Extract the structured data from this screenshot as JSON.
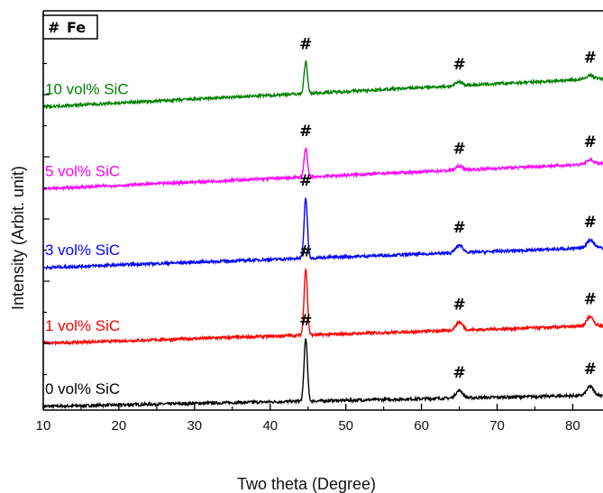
{
  "chart_data": {
    "type": "line",
    "title": "",
    "xlabel": "Two theta (Degree)",
    "ylabel": "Intensity (Arbit. unit)",
    "xlim": [
      10,
      84
    ],
    "xticks": [
      10,
      20,
      30,
      40,
      50,
      60,
      70,
      80
    ],
    "y_tick_labels": "none",
    "grid": false,
    "legend": {
      "symbol": "#",
      "phase": "Fe",
      "placement": "top-left"
    },
    "peak_marker": "#",
    "peaks": [
      44.7,
      65.0,
      82.3
    ],
    "series": [
      {
        "name": "0 vol% SiC",
        "color": "#000000",
        "baseline_start": 0.0,
        "baseline_end": 0.18,
        "peak_heights": [
          1.0,
          0.12,
          0.14
        ]
      },
      {
        "name": "1 vol% SiC",
        "color": "#ff0000",
        "baseline_start": 1.0,
        "baseline_end": 1.28,
        "peak_heights": [
          1.05,
          0.13,
          0.15
        ]
      },
      {
        "name": "3 vol% SiC",
        "color": "#0000ff",
        "baseline_start": 2.2,
        "baseline_end": 2.52,
        "peak_heights": [
          0.95,
          0.12,
          0.13
        ]
      },
      {
        "name": "5 vol% SiC",
        "color": "#ff00ff",
        "baseline_start": 3.45,
        "baseline_end": 3.85,
        "peak_heights": [
          0.45,
          0.06,
          0.07
        ]
      },
      {
        "name": "10 vol% SiC",
        "color": "#008000",
        "baseline_start": 4.75,
        "baseline_end": 5.2,
        "peak_heights": [
          0.5,
          0.06,
          0.06
        ]
      }
    ]
  }
}
